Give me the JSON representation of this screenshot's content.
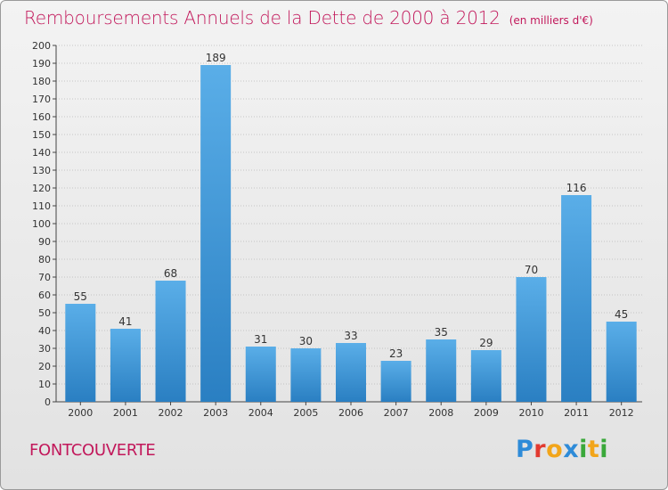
{
  "header": {
    "title": "Remboursements Annuels de la Dette de 2000 à 2012",
    "unit": "(en milliers d'€)"
  },
  "footer": {
    "commune": "FONTCOUVERTE",
    "logo": {
      "text": "Proxiti",
      "letters": [
        {
          "char": "P",
          "color": "#2e8bd8"
        },
        {
          "char": "r",
          "color": "#e23a30"
        },
        {
          "char": "o",
          "color": "#f2a51a"
        },
        {
          "char": "x",
          "color": "#2e8bd8"
        },
        {
          "char": "i",
          "color": "#3aa83a"
        },
        {
          "char": "t",
          "color": "#f2a51a"
        },
        {
          "char": "i",
          "color": "#3aa83a"
        }
      ]
    }
  },
  "colors": {
    "title": "#c2185b",
    "bar_light": "#5aaee8",
    "bar_dark": "#2a7fc2",
    "grid": "#b8b8b8"
  },
  "chart_data": {
    "type": "bar",
    "title": "Remboursements Annuels de la Dette de 2000 à 2012",
    "subtitle": "(en milliers d'€)",
    "categories": [
      "2000",
      "2001",
      "2002",
      "2003",
      "2004",
      "2005",
      "2006",
      "2007",
      "2008",
      "2009",
      "2010",
      "2011",
      "2012"
    ],
    "values": [
      55,
      41,
      68,
      189,
      31,
      30,
      33,
      23,
      35,
      29,
      70,
      116,
      45
    ],
    "ylim": [
      0,
      200
    ],
    "ytick_step": 10,
    "grid": true,
    "data_labels": true
  }
}
